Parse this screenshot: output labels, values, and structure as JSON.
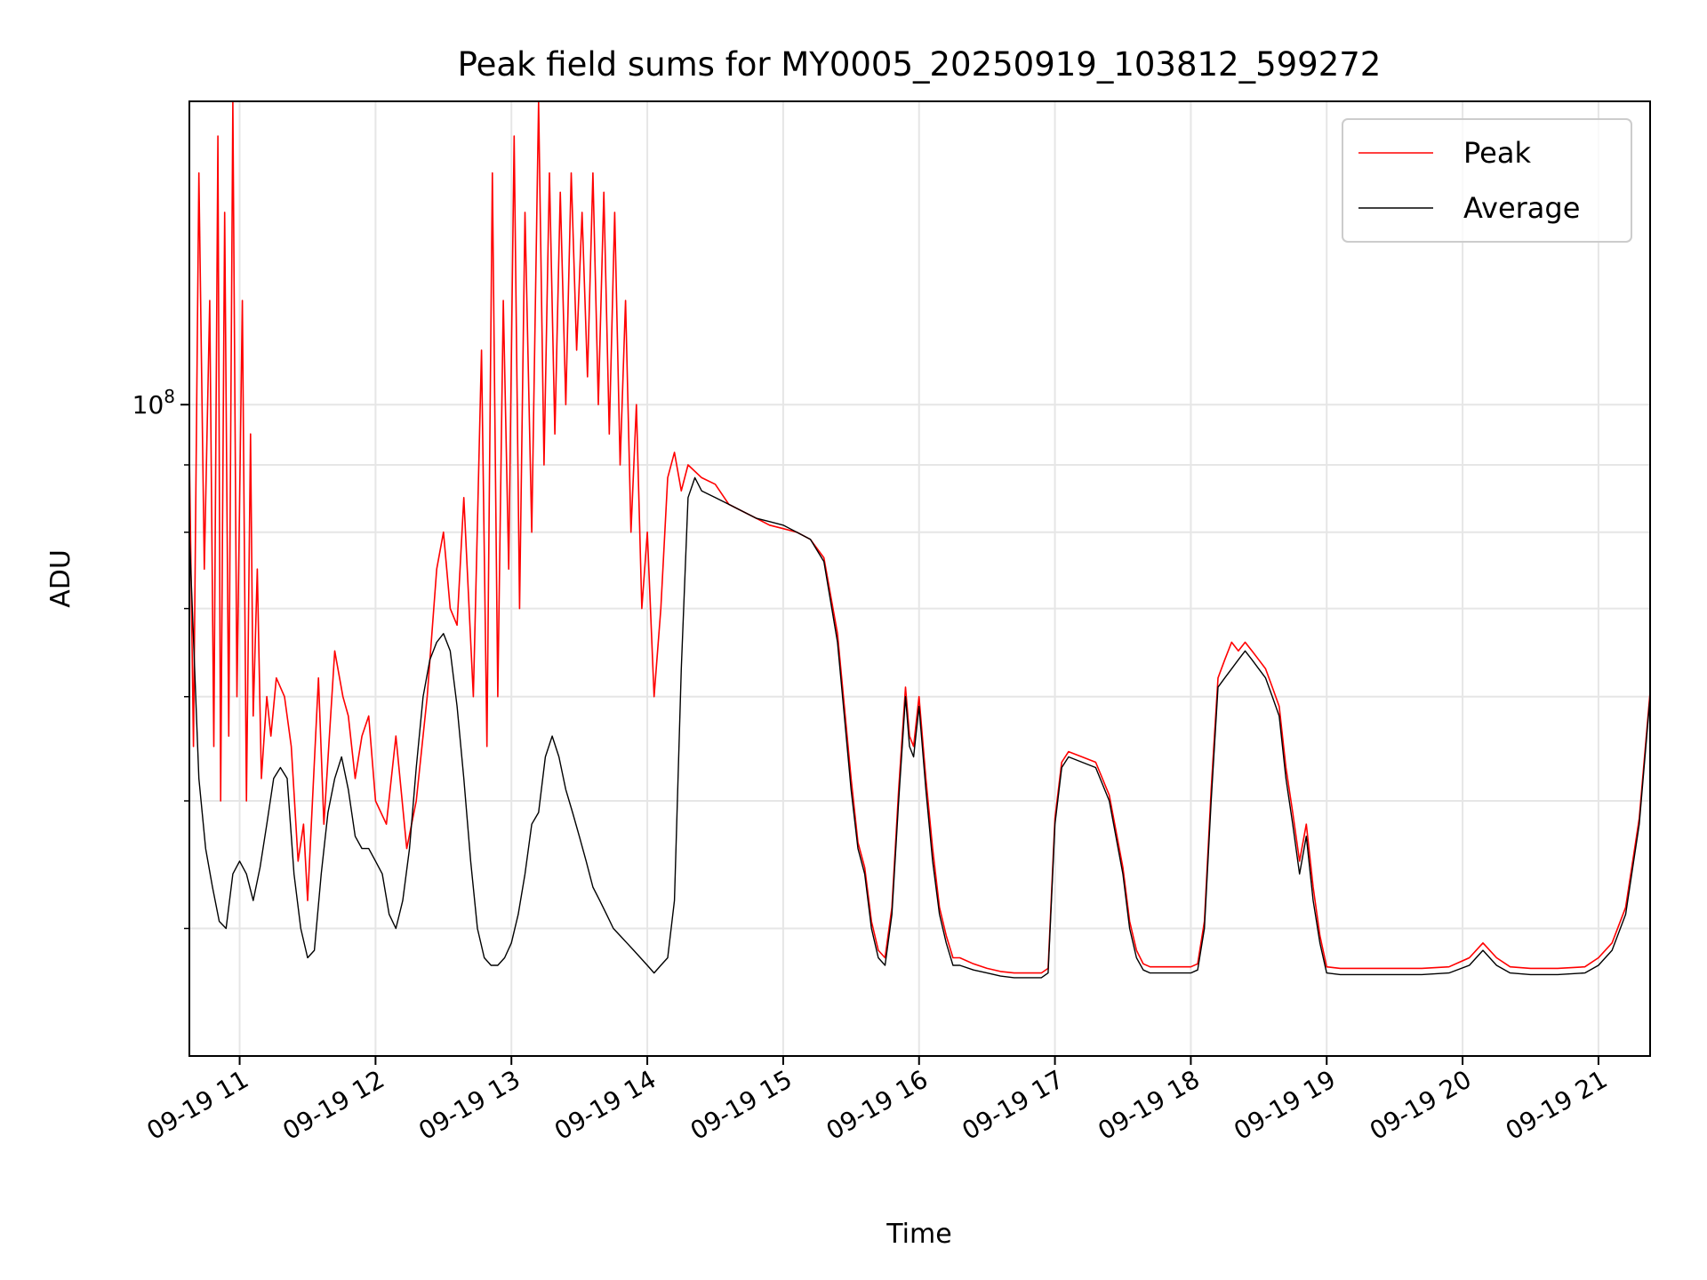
{
  "chart_data": {
    "type": "line",
    "title": "Peak field sums for MY0005_20250919_103812_599272",
    "xlabel": "Time",
    "ylabel": "ADU",
    "y_scale": "log",
    "ylim": [
      32000000,
      170000000
    ],
    "xlim_hours": [
      10.63,
      21.38
    ],
    "grid": true,
    "legend_position": "upper-right",
    "x_ticks": [
      {
        "value": 11,
        "label": "09-19 11"
      },
      {
        "value": 12,
        "label": "09-19 12"
      },
      {
        "value": 13,
        "label": "09-19 13"
      },
      {
        "value": 14,
        "label": "09-19 14"
      },
      {
        "value": 15,
        "label": "09-19 15"
      },
      {
        "value": 16,
        "label": "09-19 16"
      },
      {
        "value": 17,
        "label": "09-19 17"
      },
      {
        "value": 18,
        "label": "09-19 18"
      },
      {
        "value": 19,
        "label": "09-19 19"
      },
      {
        "value": 20,
        "label": "09-19 20"
      },
      {
        "value": 21,
        "label": "09-19 21"
      }
    ],
    "y_major_ticks": [
      {
        "value": 100000000,
        "base": "10",
        "exponent": "8"
      }
    ],
    "y_minor_ticks": [
      40000000,
      50000000,
      60000000,
      70000000,
      80000000,
      90000000,
      200000000
    ],
    "series": [
      {
        "name": "Average",
        "color": "#000000",
        "x": [
          10.63,
          10.7,
          10.75,
          10.8,
          10.85,
          10.9,
          10.95,
          11.0,
          11.05,
          11.1,
          11.15,
          11.2,
          11.25,
          11.3,
          11.35,
          11.4,
          11.45,
          11.5,
          11.55,
          11.6,
          11.65,
          11.7,
          11.75,
          11.8,
          11.85,
          11.9,
          11.95,
          12.0,
          12.05,
          12.1,
          12.15,
          12.2,
          12.25,
          12.3,
          12.35,
          12.4,
          12.45,
          12.5,
          12.55,
          12.6,
          12.65,
          12.7,
          12.75,
          12.8,
          12.85,
          12.9,
          12.95,
          13.0,
          13.05,
          13.1,
          13.15,
          13.2,
          13.25,
          13.3,
          13.35,
          13.4,
          13.45,
          13.5,
          13.55,
          13.6,
          13.65,
          13.7,
          13.75,
          13.8,
          13.85,
          13.9,
          13.95,
          14.0,
          14.05,
          14.1,
          14.15,
          14.2,
          14.25,
          14.3,
          14.35,
          14.4,
          14.5,
          14.6,
          14.7,
          14.8,
          14.9,
          15.0,
          15.1,
          15.2,
          15.3,
          15.4,
          15.45,
          15.5,
          15.55,
          15.6,
          15.65,
          15.7,
          15.75,
          15.8,
          15.85,
          15.9,
          15.93,
          15.96,
          16.0,
          16.05,
          16.1,
          16.15,
          16.2,
          16.25,
          16.3,
          16.4,
          16.5,
          16.6,
          16.7,
          16.8,
          16.9,
          16.95,
          17.0,
          17.05,
          17.1,
          17.2,
          17.3,
          17.4,
          17.5,
          17.55,
          17.6,
          17.65,
          17.7,
          17.8,
          17.9,
          18.0,
          18.05,
          18.1,
          18.15,
          18.2,
          18.25,
          18.3,
          18.35,
          18.4,
          18.45,
          18.5,
          18.55,
          18.6,
          18.65,
          18.7,
          18.75,
          18.8,
          18.85,
          18.9,
          18.95,
          19.0,
          19.1,
          19.3,
          19.5,
          19.7,
          19.9,
          20.05,
          20.15,
          20.25,
          20.35,
          20.5,
          20.7,
          20.9,
          21.0,
          21.1,
          21.2,
          21.3,
          21.38
        ],
        "values": [
          80000000,
          52000000,
          46000000,
          43000000,
          40500000,
          40000000,
          44000000,
          45000000,
          44000000,
          42000000,
          44500000,
          48000000,
          52000000,
          53000000,
          52000000,
          44000000,
          40000000,
          38000000,
          38500000,
          44000000,
          49000000,
          52000000,
          54000000,
          51000000,
          47000000,
          46000000,
          46000000,
          45000000,
          44000000,
          41000000,
          40000000,
          42000000,
          46000000,
          53000000,
          60000000,
          64000000,
          66000000,
          67000000,
          65000000,
          59000000,
          52000000,
          45000000,
          40000000,
          38000000,
          37500000,
          37500000,
          38000000,
          39000000,
          41000000,
          44000000,
          48000000,
          49000000,
          54000000,
          56000000,
          54000000,
          51000000,
          49000000,
          47000000,
          45000000,
          43000000,
          42000000,
          41000000,
          40000000,
          39500000,
          39000000,
          38500000,
          38000000,
          37500000,
          37000000,
          37500000,
          38000000,
          42000000,
          63000000,
          85000000,
          88000000,
          86000000,
          85000000,
          84000000,
          83000000,
          82000000,
          81500000,
          81000000,
          80000000,
          79000000,
          76000000,
          66000000,
          58000000,
          51000000,
          46000000,
          44000000,
          40000000,
          38000000,
          37500000,
          41000000,
          50000000,
          60000000,
          55000000,
          54000000,
          59000000,
          51000000,
          45000000,
          41000000,
          39000000,
          37500000,
          37500000,
          37200000,
          37000000,
          36800000,
          36700000,
          36700000,
          36700000,
          37000000,
          48000000,
          53000000,
          54000000,
          53500000,
          53000000,
          50000000,
          44000000,
          40000000,
          38000000,
          37200000,
          37000000,
          37000000,
          37000000,
          37000000,
          37200000,
          40000000,
          50000000,
          61000000,
          62000000,
          63000000,
          64000000,
          65000000,
          64000000,
          63000000,
          62000000,
          60000000,
          58000000,
          52000000,
          48000000,
          44000000,
          47000000,
          42000000,
          39000000,
          37000000,
          36900000,
          36900000,
          36900000,
          36900000,
          37000000,
          37500000,
          38500000,
          37500000,
          37000000,
          36900000,
          36900000,
          37000000,
          37500000,
          38500000,
          41000000,
          48000000,
          60000000
        ]
      },
      {
        "name": "Peak",
        "color": "#ff0000",
        "x": [
          10.63,
          10.66,
          10.7,
          10.74,
          10.78,
          10.81,
          10.84,
          10.86,
          10.89,
          10.92,
          10.95,
          10.98,
          11.02,
          11.05,
          11.08,
          11.1,
          11.13,
          11.16,
          11.2,
          11.23,
          11.27,
          11.33,
          11.38,
          11.43,
          11.47,
          11.5,
          11.58,
          11.62,
          11.7,
          11.76,
          11.8,
          11.85,
          11.9,
          11.95,
          12.0,
          12.08,
          12.15,
          12.23,
          12.3,
          12.38,
          12.45,
          12.5,
          12.55,
          12.6,
          12.65,
          12.72,
          12.78,
          12.82,
          12.86,
          12.9,
          12.94,
          12.98,
          13.02,
          13.06,
          13.1,
          13.15,
          13.2,
          13.24,
          13.28,
          13.32,
          13.36,
          13.4,
          13.44,
          13.48,
          13.52,
          13.56,
          13.6,
          13.64,
          13.68,
          13.72,
          13.76,
          13.8,
          13.84,
          13.88,
          13.92,
          13.96,
          14.0,
          14.05,
          14.1,
          14.15,
          14.2,
          14.25,
          14.3,
          14.4,
          14.5,
          14.6,
          14.7,
          14.8,
          14.9,
          15.0,
          15.1,
          15.2,
          15.3,
          15.4,
          15.45,
          15.5,
          15.55,
          15.6,
          15.65,
          15.7,
          15.75,
          15.8,
          15.85,
          15.9,
          15.93,
          15.96,
          16.0,
          16.05,
          16.1,
          16.15,
          16.2,
          16.25,
          16.3,
          16.4,
          16.5,
          16.6,
          16.7,
          16.8,
          16.9,
          16.95,
          17.0,
          17.05,
          17.1,
          17.2,
          17.3,
          17.4,
          17.5,
          17.55,
          17.6,
          17.65,
          17.7,
          17.8,
          17.9,
          18.0,
          18.05,
          18.1,
          18.15,
          18.2,
          18.25,
          18.3,
          18.35,
          18.4,
          18.45,
          18.5,
          18.55,
          18.6,
          18.65,
          18.7,
          18.75,
          18.8,
          18.85,
          18.9,
          18.95,
          19.0,
          19.1,
          19.3,
          19.5,
          19.7,
          19.9,
          20.05,
          20.15,
          20.25,
          20.35,
          20.5,
          20.7,
          20.9,
          21.0,
          21.1,
          21.2,
          21.3,
          21.38
        ],
        "values": [
          92000000,
          55000000,
          150000000,
          75000000,
          120000000,
          55000000,
          160000000,
          50000000,
          140000000,
          56000000,
          170000000,
          60000000,
          120000000,
          50000000,
          95000000,
          58000000,
          75000000,
          52000000,
          60000000,
          56000000,
          62000000,
          60000000,
          55000000,
          45000000,
          48000000,
          42000000,
          62000000,
          48000000,
          65000000,
          60000000,
          58000000,
          52000000,
          56000000,
          58000000,
          50000000,
          48000000,
          56000000,
          46000000,
          50000000,
          60000000,
          75000000,
          80000000,
          70000000,
          68000000,
          85000000,
          60000000,
          110000000,
          55000000,
          150000000,
          60000000,
          120000000,
          75000000,
          160000000,
          70000000,
          140000000,
          80000000,
          170000000,
          90000000,
          150000000,
          95000000,
          145000000,
          100000000,
          150000000,
          110000000,
          140000000,
          105000000,
          150000000,
          100000000,
          145000000,
          95000000,
          140000000,
          90000000,
          120000000,
          80000000,
          100000000,
          70000000,
          80000000,
          60000000,
          70000000,
          88000000,
          92000000,
          86000000,
          90000000,
          88000000,
          87000000,
          84000000,
          83000000,
          82000000,
          81000000,
          80500000,
          80000000,
          79000000,
          76500000,
          67000000,
          59000000,
          52000000,
          46500000,
          44500000,
          40500000,
          38500000,
          38000000,
          41500000,
          51000000,
          61000000,
          56000000,
          55000000,
          60000000,
          52000000,
          46000000,
          41500000,
          39500000,
          38000000,
          38000000,
          37600000,
          37300000,
          37100000,
          37000000,
          37000000,
          37000000,
          37300000,
          48500000,
          53500000,
          54500000,
          54000000,
          53500000,
          50500000,
          44500000,
          40500000,
          38500000,
          37600000,
          37400000,
          37400000,
          37400000,
          37400000,
          37600000,
          40500000,
          51000000,
          62000000,
          64000000,
          66000000,
          65000000,
          66000000,
          65000000,
          64000000,
          63000000,
          61000000,
          59000000,
          53000000,
          49000000,
          45000000,
          48000000,
          43000000,
          39500000,
          37400000,
          37300000,
          37300000,
          37300000,
          37300000,
          37400000,
          38000000,
          39000000,
          38000000,
          37400000,
          37300000,
          37300000,
          37400000,
          38000000,
          39000000,
          41500000,
          48500000,
          60500000
        ]
      }
    ]
  }
}
